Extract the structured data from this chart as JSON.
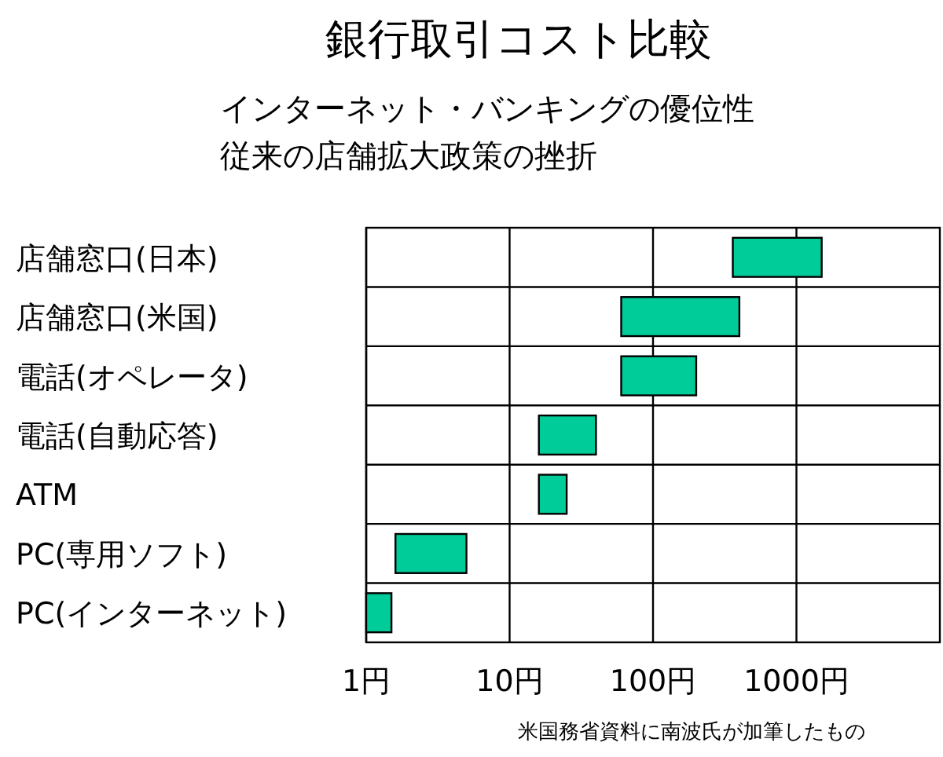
{
  "chart_data": {
    "type": "bar",
    "orientation": "horizontal",
    "title": "銀行取引コスト比較",
    "subtitle": "インターネット・バンキングの優位性",
    "categories": [
      "店舗窓口(日本)",
      "店舗窓口(米国)",
      "電話(オペレータ)",
      "電話(自動応答)",
      "ATM",
      "PC(専用ソフト)",
      "PC(インターネット)"
    ],
    "base": [
      360,
      60,
      60,
      16,
      16,
      1.6,
      1
    ],
    "values": [
      1140,
      340,
      140,
      24,
      9,
      3.4,
      0.5
    ],
    "color": "#00cc99",
    "log": "x",
    "xlim": [
      1,
      10000
    ],
    "xticks": [
      {
        "value": 1,
        "label": "1円"
      },
      {
        "value": 10,
        "label": "10円"
      },
      {
        "value": 100,
        "label": "100円"
      },
      {
        "value": 1000,
        "label": "1000円"
      }
    ],
    "grid": true,
    "annotations": [
      "従来の店舗拡大政策の挫折",
      "米国務省資料に南波氏が加筆したもの"
    ]
  }
}
